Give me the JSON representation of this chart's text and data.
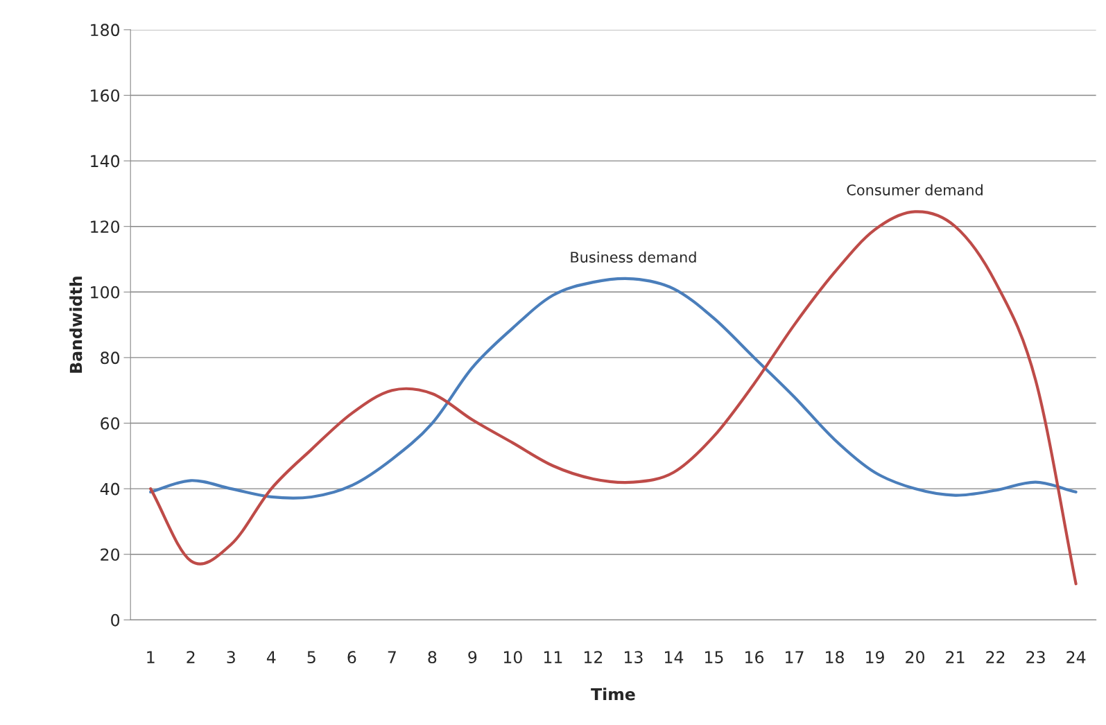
{
  "chart_data": {
    "type": "line",
    "xlabel": "Time",
    "ylabel": "Bandwidth",
    "categories": [
      "1",
      "2",
      "3",
      "4",
      "5",
      "6",
      "7",
      "8",
      "9",
      "10",
      "11",
      "12",
      "13",
      "14",
      "15",
      "16",
      "17",
      "18",
      "19",
      "20",
      "21",
      "22",
      "23",
      "24"
    ],
    "series": [
      {
        "name": "Business demand",
        "color": "#4a7ebb",
        "values": [
          39,
          42.5,
          40,
          37.5,
          37.5,
          41,
          49,
          60,
          77,
          89,
          99,
          103,
          104,
          101,
          92,
          80,
          68,
          55,
          45,
          40,
          38,
          39.5,
          42,
          39
        ]
      },
      {
        "name": "Consumer demand",
        "color": "#be4b48",
        "values": [
          40,
          18,
          23,
          40,
          52,
          63,
          70,
          69,
          61,
          54,
          47,
          43,
          42,
          45,
          56,
          72,
          90,
          106,
          119,
          124.5,
          120,
          103,
          73,
          11
        ]
      }
    ],
    "ylim": [
      0,
      180
    ],
    "yticks": [
      0,
      20,
      40,
      60,
      80,
      100,
      120,
      140,
      160,
      180
    ],
    "grid": "y",
    "legend": false,
    "marker": "none",
    "line_style": "solid"
  }
}
